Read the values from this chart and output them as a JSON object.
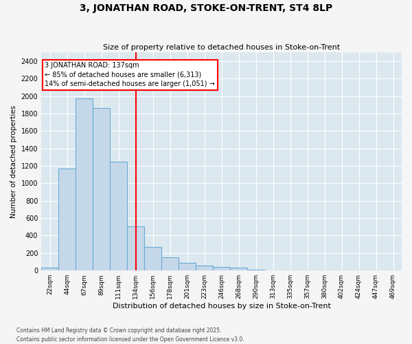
{
  "title": "3, JONATHAN ROAD, STOKE-ON-TRENT, ST4 8LP",
  "subtitle": "Size of property relative to detached houses in Stoke-on-Trent",
  "xlabel": "Distribution of detached houses by size in Stoke-on-Trent",
  "ylabel": "Number of detached properties",
  "bar_color": "#c5d8ea",
  "bar_edge_color": "#6aaad4",
  "plot_bg_color": "#dce8f0",
  "fig_bg_color": "#f5f5f5",
  "grid_color": "#ffffff",
  "categories": [
    "22sqm",
    "44sqm",
    "67sqm",
    "89sqm",
    "111sqm",
    "134sqm",
    "156sqm",
    "178sqm",
    "201sqm",
    "223sqm",
    "246sqm",
    "268sqm",
    "290sqm",
    "313sqm",
    "335sqm",
    "357sqm",
    "380sqm",
    "402sqm",
    "424sqm",
    "447sqm",
    "469sqm"
  ],
  "values": [
    30,
    1170,
    1970,
    1860,
    1250,
    510,
    270,
    150,
    90,
    55,
    40,
    30,
    10,
    5,
    3,
    2,
    1,
    0,
    0,
    0,
    0
  ],
  "vline_index": 5,
  "annotation_line1": "3 JONATHAN ROAD: 137sqm",
  "annotation_line2": "← 85% of detached houses are smaller (6,313)",
  "annotation_line3": "14% of semi-detached houses are larger (1,051) →",
  "ylim": [
    0,
    2500
  ],
  "yticks": [
    0,
    200,
    400,
    600,
    800,
    1000,
    1200,
    1400,
    1600,
    1800,
    2000,
    2200,
    2400
  ],
  "footer_line1": "Contains HM Land Registry data © Crown copyright and database right 2025.",
  "footer_line2": "Contains public sector information licensed under the Open Government Licence v3.0."
}
